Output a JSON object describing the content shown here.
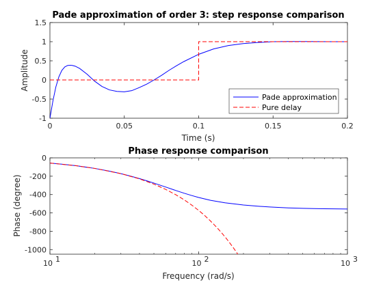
{
  "chart_data": [
    {
      "type": "line",
      "title": "Pade approximation of order 3: step response comparison",
      "xlabel": "Time (s)",
      "ylabel": "Amplitude",
      "xlim": [
        0,
        0.2
      ],
      "ylim": [
        -1,
        1.5
      ],
      "xticks": [
        0,
        0.05,
        0.1,
        0.15,
        0.2
      ],
      "xtick_labels": [
        "0",
        "0.05",
        "0.1",
        "0.15",
        "0.2"
      ],
      "yticks": [
        -1,
        -0.5,
        0,
        0.5,
        1,
        1.5
      ],
      "ytick_labels": [
        "-1",
        "-0.5",
        "0",
        "0.5",
        "1",
        "1.5"
      ],
      "grid": false,
      "legend": "bottom-right",
      "series": [
        {
          "name": "Pade approximation",
          "color": "#0000ff",
          "style": "solid",
          "x": [
            0,
            0.002,
            0.004,
            0.006,
            0.008,
            0.01,
            0.012,
            0.014,
            0.015,
            0.017,
            0.02,
            0.025,
            0.03,
            0.035,
            0.04,
            0.045,
            0.05,
            0.055,
            0.06,
            0.065,
            0.07,
            0.075,
            0.08,
            0.085,
            0.09,
            0.1,
            0.11,
            0.12,
            0.13,
            0.14,
            0.15,
            0.16,
            0.17,
            0.18,
            0.19,
            0.2
          ],
          "y": [
            -1,
            -0.55,
            -0.18,
            0.08,
            0.25,
            0.34,
            0.38,
            0.385,
            0.38,
            0.36,
            0.3,
            0.15,
            -0.03,
            -0.17,
            -0.26,
            -0.3,
            -0.31,
            -0.28,
            -0.2,
            -0.11,
            0.0,
            0.12,
            0.25,
            0.37,
            0.48,
            0.67,
            0.81,
            0.9,
            0.95,
            0.98,
            1.0,
            1.005,
            1.005,
            1.003,
            1.001,
            1.0
          ]
        },
        {
          "name": "Pure delay",
          "color": "#ff0000",
          "style": "dashed",
          "x": [
            0,
            0.1,
            0.1,
            0.2
          ],
          "y": [
            0,
            0,
            1,
            1
          ]
        }
      ]
    },
    {
      "type": "line",
      "title": "Phase response comparison",
      "xlabel": "Frequency (rad/s)",
      "ylabel": "Phase (degree)",
      "xscale": "log",
      "xlim": [
        10,
        1000
      ],
      "ylim": [
        -1050,
        0
      ],
      "xticks": [
        10,
        100,
        1000
      ],
      "xtick_labels": [
        {
          "base": "10",
          "exp": "1"
        },
        {
          "base": "10",
          "exp": "2"
        },
        {
          "base": "10",
          "exp": "3"
        }
      ],
      "yticks": [
        0,
        -200,
        -400,
        -600,
        -800,
        -1000
      ],
      "ytick_labels": [
        "0",
        "-200",
        "-400",
        "-600",
        "-800",
        "-1000"
      ],
      "grid": false,
      "series": [
        {
          "name": "",
          "color": "#0000ff",
          "style": "solid",
          "x": [
            10,
            12,
            15,
            20,
            25,
            30,
            35,
            40,
            45,
            50,
            60,
            70,
            80,
            90,
            100,
            120,
            150,
            200,
            250,
            300,
            400,
            500,
            600,
            700,
            800,
            1000
          ],
          "y": [
            -57,
            -69,
            -86,
            -115,
            -144,
            -172,
            -200,
            -226,
            -251,
            -275,
            -318,
            -355,
            -386,
            -411,
            -432,
            -463,
            -490,
            -514,
            -527,
            -535,
            -545,
            -550,
            -553,
            -555,
            -556,
            -558
          ]
        },
        {
          "name": "",
          "color": "#ff0000",
          "style": "dashed",
          "x": [
            10,
            15,
            20,
            30,
            40,
            50,
            60,
            70,
            80,
            90,
            100,
            110,
            120,
            130,
            140,
            150,
            160,
            170,
            180,
            183
          ],
          "y": [
            -57,
            -86,
            -115,
            -172,
            -229,
            -286,
            -344,
            -401,
            -458,
            -516,
            -573,
            -630,
            -688,
            -745,
            -802,
            -859,
            -917,
            -974,
            -1031,
            -1050
          ]
        }
      ]
    }
  ]
}
